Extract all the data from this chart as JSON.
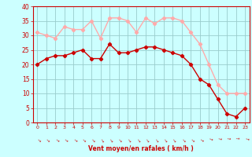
{
  "x": [
    0,
    1,
    2,
    3,
    4,
    5,
    6,
    7,
    8,
    9,
    10,
    11,
    12,
    13,
    14,
    15,
    16,
    17,
    18,
    19,
    20,
    21,
    22,
    23
  ],
  "vent_moyen": [
    20,
    22,
    23,
    23,
    24,
    25,
    22,
    22,
    27,
    24,
    24,
    25,
    26,
    26,
    25,
    24,
    23,
    20,
    15,
    13,
    8,
    3,
    2,
    5
  ],
  "rafales": [
    31,
    30,
    29,
    33,
    32,
    32,
    35,
    29,
    36,
    36,
    35,
    31,
    36,
    34,
    36,
    36,
    35,
    31,
    27,
    20,
    13,
    10,
    10,
    10
  ],
  "xlabel": "Vent moyen/en rafales ( km/h )",
  "xlim": [
    -0.5,
    23.5
  ],
  "ylim": [
    0,
    40
  ],
  "yticks": [
    0,
    5,
    10,
    15,
    20,
    25,
    30,
    35,
    40
  ],
  "xticks": [
    0,
    1,
    2,
    3,
    4,
    5,
    6,
    7,
    8,
    9,
    10,
    11,
    12,
    13,
    14,
    15,
    16,
    17,
    18,
    19,
    20,
    21,
    22,
    23
  ],
  "color_moyen": "#cc0000",
  "color_rafales": "#ffaaaa",
  "bg_color": "#ccffff",
  "grid_color": "#99cccc",
  "text_color": "#cc0000",
  "marker_size": 2.2,
  "line_width": 1.0
}
